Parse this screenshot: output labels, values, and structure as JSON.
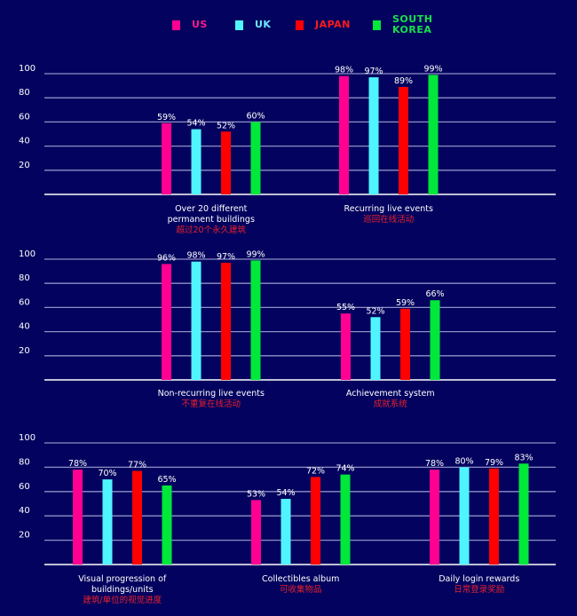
{
  "colors": {
    "background": "#03035f",
    "gridline": "#8f8fc4",
    "baseline": "#ffffff",
    "US": "#ff0090",
    "UK": "#4ff4ff",
    "JAPAN": "#ff0000",
    "SOUTH KOREA": "#00e83a",
    "chinese_label": "#e8202a"
  },
  "legend": [
    {
      "name": "US",
      "label": "US",
      "color": "#ff0090",
      "text_color": "#ff1a8c"
    },
    {
      "name": "UK",
      "label": "UK",
      "color": "#4ff4ff",
      "text_color": "#6fe8ff"
    },
    {
      "name": "JAPAN",
      "label": "JAPAN",
      "color": "#ff0000",
      "text_color": "#ff1a1a"
    },
    {
      "name": "SOUTH KOREA",
      "label": "SOUTH\nKOREA",
      "color": "#00e83a",
      "text_color": "#19e04a"
    }
  ],
  "chart_data": [
    {
      "type": "bar",
      "title": "",
      "xlabel": "",
      "ylabel": "",
      "ylim": [
        0,
        100
      ],
      "yticks": [
        20,
        40,
        60,
        80,
        100
      ],
      "grid": true,
      "legend_position": "top",
      "categories": [
        {
          "en": "Over 20 different\npermanent buildings",
          "zh": "超过20个永久建筑"
        },
        {
          "en": "Recurring live events",
          "zh": "巡回在线活动"
        }
      ],
      "series": [
        {
          "name": "US",
          "values": [
            59,
            98
          ]
        },
        {
          "name": "UK",
          "values": [
            54,
            97
          ]
        },
        {
          "name": "JAPAN",
          "values": [
            52,
            89
          ]
        },
        {
          "name": "SOUTH KOREA",
          "values": [
            60,
            99
          ]
        }
      ]
    },
    {
      "type": "bar",
      "title": "",
      "xlabel": "",
      "ylabel": "",
      "ylim": [
        0,
        100
      ],
      "yticks": [
        20,
        40,
        60,
        80,
        100
      ],
      "grid": true,
      "categories": [
        {
          "en": "Non-recurring live events",
          "zh": "不重复在线活动"
        },
        {
          "en": "Achievement system",
          "zh": "成就系统"
        }
      ],
      "series": [
        {
          "name": "US",
          "values": [
            96,
            55
          ]
        },
        {
          "name": "UK",
          "values": [
            98,
            52
          ]
        },
        {
          "name": "JAPAN",
          "values": [
            97,
            59
          ]
        },
        {
          "name": "SOUTH KOREA",
          "values": [
            99,
            66
          ]
        }
      ]
    },
    {
      "type": "bar",
      "title": "",
      "xlabel": "",
      "ylabel": "",
      "ylim": [
        0,
        100
      ],
      "yticks": [
        20,
        40,
        60,
        80,
        100
      ],
      "grid": true,
      "categories": [
        {
          "en": "Visual progression of\nbuildings/units",
          "zh": "建筑/单位的视觉进度"
        },
        {
          "en": "Collectibles album",
          "zh": "可收集物品"
        },
        {
          "en": "Daily login rewards",
          "zh": "日常登录奖励"
        }
      ],
      "series": [
        {
          "name": "US",
          "values": [
            78,
            53,
            78
          ]
        },
        {
          "name": "UK",
          "values": [
            70,
            54,
            80
          ]
        },
        {
          "name": "JAPAN",
          "values": [
            77,
            72,
            79
          ]
        },
        {
          "name": "SOUTH KOREA",
          "values": [
            65,
            74,
            83
          ]
        }
      ]
    }
  ]
}
